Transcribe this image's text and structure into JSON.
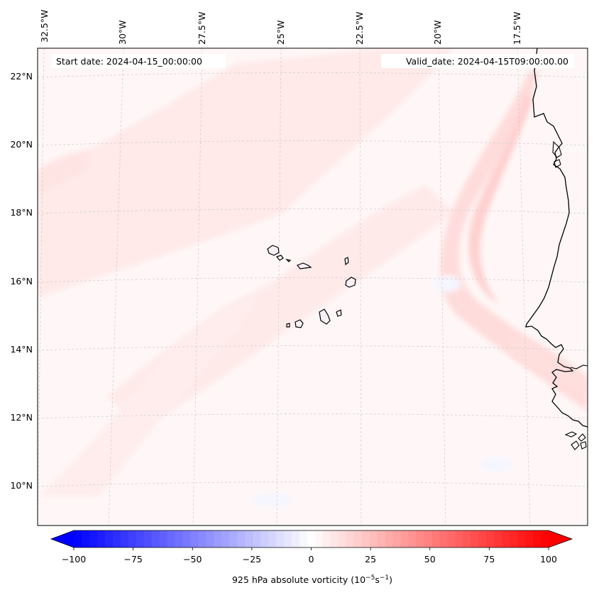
{
  "map": {
    "header": {
      "start_date": "Start date: 2024-04-15_00:00:00",
      "valid_date": "Valid_date: 2024-04-15T09:00:00.00"
    },
    "lon_labels": [
      "32.5°W",
      "30°W",
      "27.5°W",
      "25°W",
      "22.5°W",
      "20°W",
      "17.5°W"
    ],
    "lat_labels": [
      "22°N",
      "20°N",
      "18°N",
      "16°N",
      "14°N",
      "12°N",
      "10°N"
    ],
    "colorbar": {
      "ticks": [
        "−100",
        "−75",
        "−50",
        "−25",
        "0",
        "25",
        "50",
        "75",
        "100"
      ],
      "tick_values": [
        -100,
        -75,
        -50,
        -25,
        0,
        25,
        50,
        75,
        100
      ],
      "vmin": -100,
      "vmax": 100,
      "levels": 61,
      "title_main": "925 hPa absolute vorticity (10",
      "title_exp1": "−5",
      "title_mid": "s",
      "title_exp2": "−1",
      "title_end": ")",
      "color_negative": "#0000ff",
      "color_zero": "#ffffff",
      "color_positive": "#ff0000",
      "extend": "both"
    }
  }
}
